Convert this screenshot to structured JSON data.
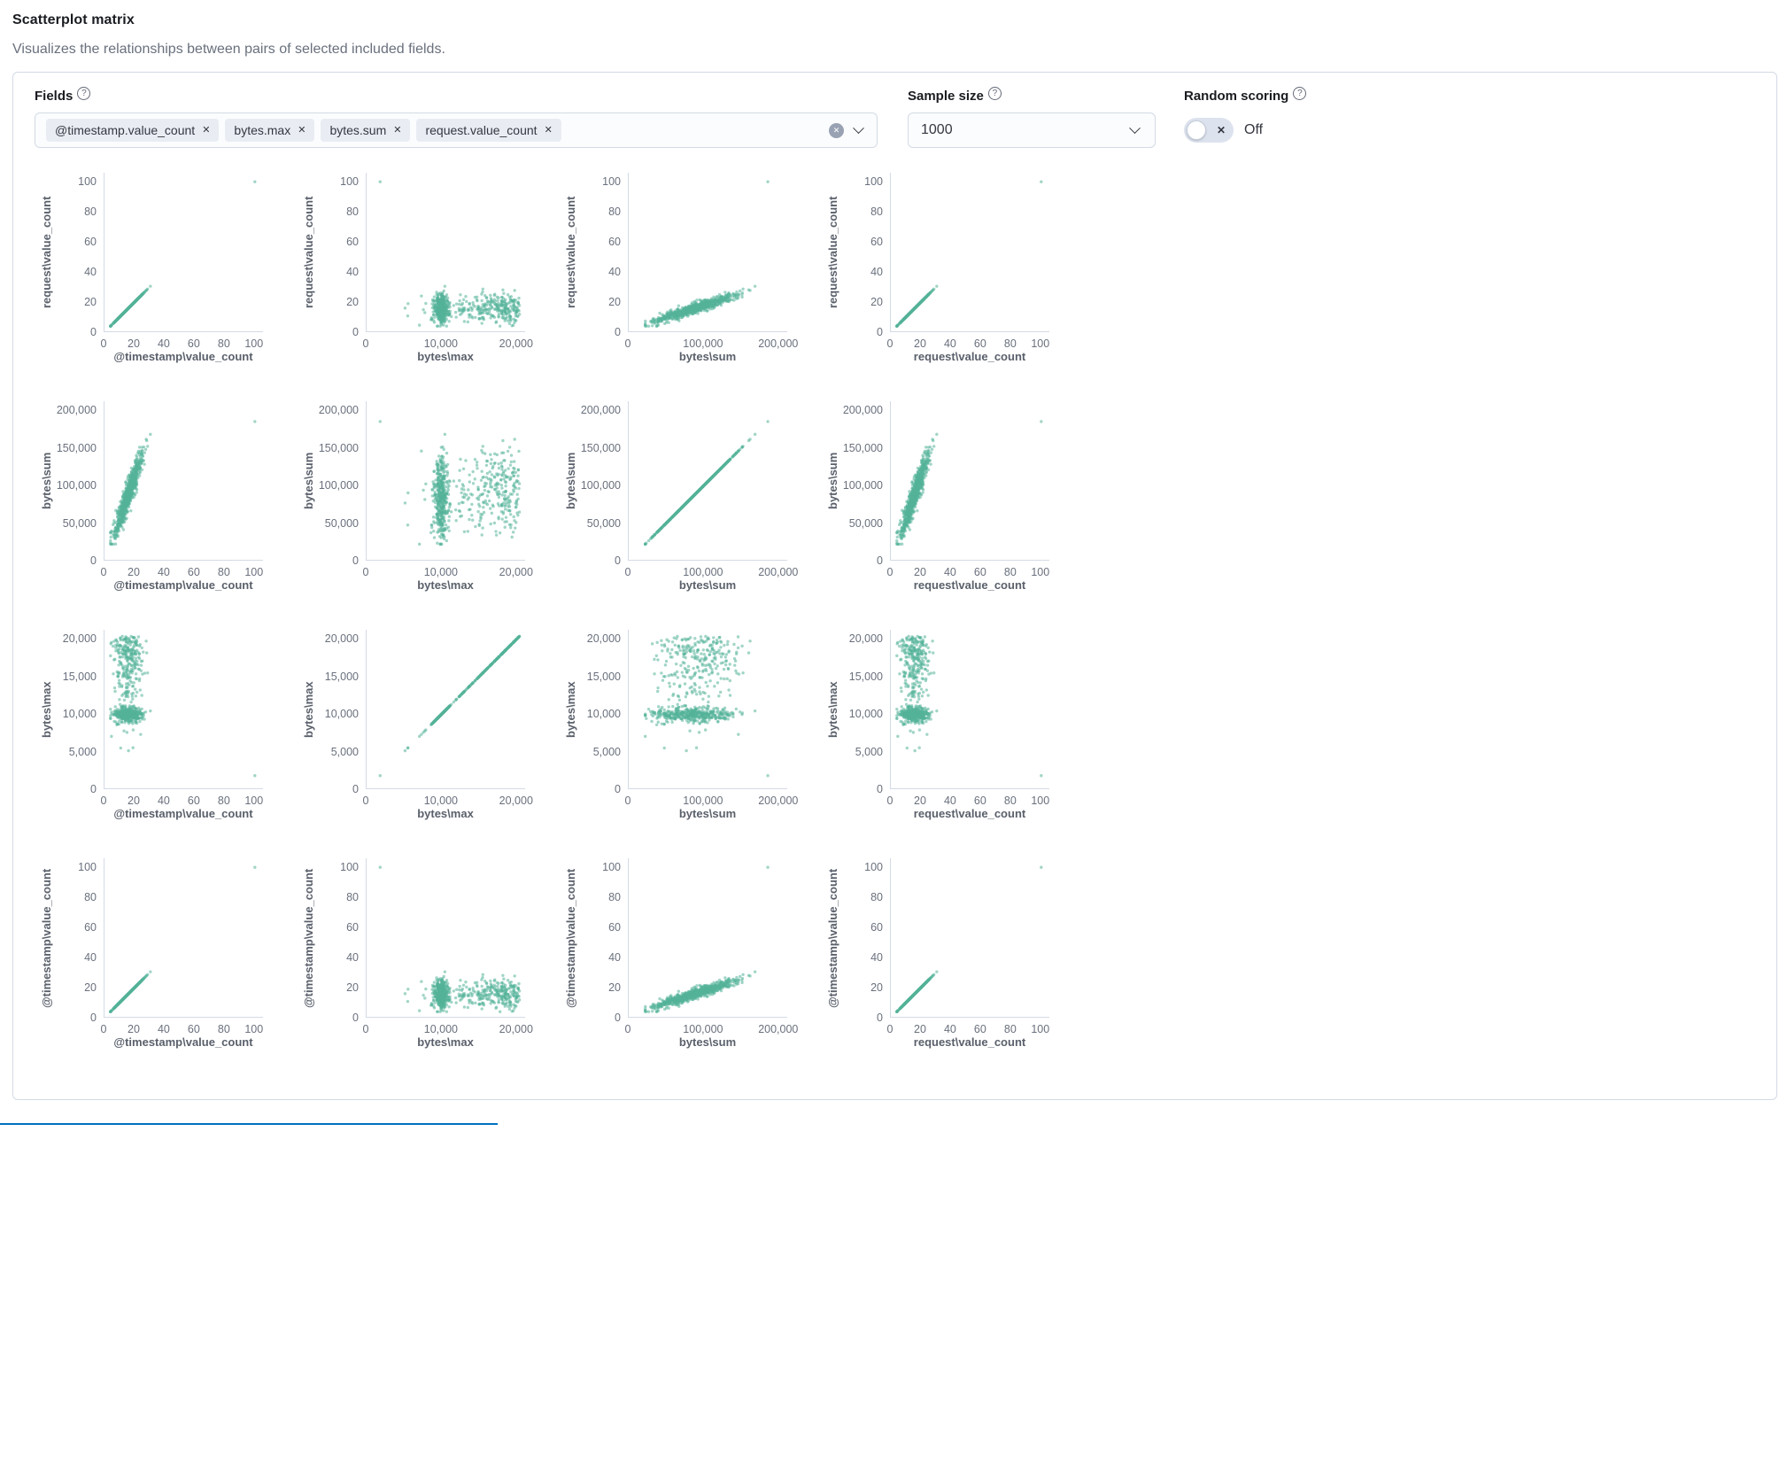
{
  "page": {
    "title": "Scatterplot matrix",
    "subtitle": "Visualizes the relationships between pairs of selected included fields."
  },
  "controls": {
    "fields": {
      "label": "Fields",
      "selected": [
        "@timestamp.value_count",
        "bytes.max",
        "bytes.sum",
        "request.value_count"
      ]
    },
    "sample_size": {
      "label": "Sample size",
      "value": "1000"
    },
    "random_scoring": {
      "label": "Random scoring",
      "state": "Off"
    }
  },
  "icons": {
    "help": "?",
    "clear": "✕",
    "remove": "✕",
    "switch_off": "✕"
  },
  "colors": {
    "point": "#54b399",
    "axis": "#d3dae6",
    "accent_line": "#0071c2"
  },
  "chart_data": {
    "type": "scatter",
    "title": "Scatterplot matrix",
    "fields_rows_top_to_bottom": [
      "request\\value_count",
      "bytes\\sum",
      "bytes\\max",
      "@timestamp\\value_count"
    ],
    "fields_cols_left_to_right": [
      "@timestamp\\value_count",
      "bytes\\max",
      "bytes\\sum",
      "request\\value_count"
    ],
    "variable_axis_key": {
      "@timestamp\\value_count": "value_count",
      "request\\value_count": "value_count",
      "bytes\\max": "bytes_max",
      "bytes\\sum": "bytes_sum"
    },
    "axes": {
      "value_count": {
        "x_ticks": [
          0,
          20,
          40,
          60,
          80,
          100
        ],
        "y_ticks": [
          0,
          20,
          40,
          60,
          80,
          100
        ],
        "domain_max": 106
      },
      "bytes_max": {
        "x_ticks": [
          0,
          10000,
          20000
        ],
        "y_ticks": [
          0,
          5000,
          10000,
          15000,
          20000
        ],
        "domain_max": 21200
      },
      "bytes_sum": {
        "x_ticks": [
          0,
          100000,
          200000
        ],
        "y_ticks": [
          0,
          50000,
          100000,
          150000,
          200000
        ],
        "domain_max": 212000
      }
    },
    "grid": false,
    "point_color": "#54b399",
    "point_opacity": 0.55,
    "point_radius": 1.7,
    "n_points": 700,
    "seed": 7,
    "relationships": {
      "timestamp_vs_request": "identical (perfect diagonal)",
      "bytes_sum_vs_value_count": "strong positive",
      "bytes_max_vs_value_count": "uncorrelated vertical band",
      "bytes_sum_vs_bytes_max": "weak positive blob with dense band at 10,000"
    },
    "synth": {
      "value_count": {
        "mean": 14,
        "sd": 4.5,
        "skew": 2,
        "min": 4,
        "max": 33
      },
      "bytes_max_band": {
        "mean": 9900,
        "sd": 450,
        "weight": 0.55
      },
      "bytes_max_spread": {
        "top": 20400,
        "sd": 5200,
        "min": 4200
      },
      "bytes_sum": {
        "per_count": 5400,
        "max_coef": 1.2,
        "noise_sd": 9000,
        "min": 22000,
        "max": 168000
      },
      "outlier": {
        "value_count": 100,
        "bytes_max": 1800,
        "bytes_sum": 185000
      }
    }
  }
}
